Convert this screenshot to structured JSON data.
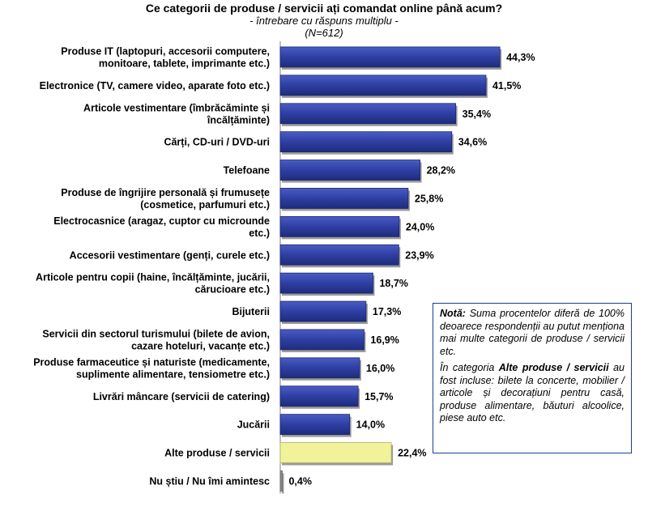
{
  "chart_data": {
    "type": "bar",
    "orientation": "horizontal",
    "title": "Ce categorii de produse / servicii ați comandat online până acum?",
    "subtitle": "- întrebare cu răspuns multiplu -",
    "sample": "(N=612)",
    "categories": [
      [
        "Produse IT (laptopuri, accesorii computere,",
        "monitoare, tablete, imprimante etc.)"
      ],
      [
        "Electronice (TV, camere video, aparate foto etc.)"
      ],
      [
        "Articole vestimentare (îmbrăcăminte și",
        "încălțăminte)"
      ],
      [
        "Cărți, CD-uri / DVD-uri"
      ],
      [
        "Telefoane"
      ],
      [
        "Produse de îngrijire personală și frumusețe",
        "(cosmetice, parfumuri etc.)"
      ],
      [
        "Electrocasnice (aragaz, cuptor cu microunde",
        "etc.)"
      ],
      [
        "Accesorii vestimentare (genți, curele etc.)"
      ],
      [
        "Articole pentru copii (haine, încălțăminte, jucării,",
        "cărucioare etc.)"
      ],
      [
        "Bijuterii"
      ],
      [
        "Servicii din sectorul turismului (bilete de avion,",
        "cazare hoteluri, vacanțe etc.)"
      ],
      [
        "Produse farmaceutice și naturiste (medicamente,",
        "suplimente alimentare, tensiometre etc.)"
      ],
      [
        "Livrări mâncare (servicii de catering)"
      ],
      [
        "Jucării"
      ],
      [
        "Alte produse / servicii"
      ],
      [
        "Nu știu / Nu îmi amintesc"
      ]
    ],
    "values": [
      44.3,
      41.5,
      35.4,
      34.6,
      28.2,
      25.8,
      24.0,
      23.9,
      18.7,
      17.3,
      16.9,
      16.0,
      15.7,
      14.0,
      22.4,
      0.4
    ],
    "value_labels": [
      "44,3%",
      "41,5%",
      "35,4%",
      "34,6%",
      "28,2%",
      "25,8%",
      "24,0%",
      "23,9%",
      "18,7%",
      "17,3%",
      "16,9%",
      "16,0%",
      "15,7%",
      "14,0%",
      "22,4%",
      "0,4%"
    ],
    "bar_colors": [
      "#2e3fa3",
      "#2e3fa3",
      "#2e3fa3",
      "#2e3fa3",
      "#2e3fa3",
      "#2e3fa3",
      "#2e3fa3",
      "#2e3fa3",
      "#2e3fa3",
      "#2e3fa3",
      "#2e3fa3",
      "#2e3fa3",
      "#2e3fa3",
      "#2e3fa3",
      "#f2f29a",
      "#8c8c8c"
    ],
    "xlim": [
      0,
      50
    ],
    "grid": false,
    "legend": "none"
  },
  "note": {
    "label": "Notă:",
    "text1": "Suma procentelor diferă de 100% deoarece respondenții au putut menționa mai multe categorii de produse / servicii etc.",
    "text2_before": "În categoria",
    "text2_bold": "Alte produse / servicii",
    "text2_after": "au fost incluse: bilete la concerte, mobilier / articole și decorațiuni pentru casă, produse alimentare, băuturi alcoolice, piese auto etc."
  }
}
